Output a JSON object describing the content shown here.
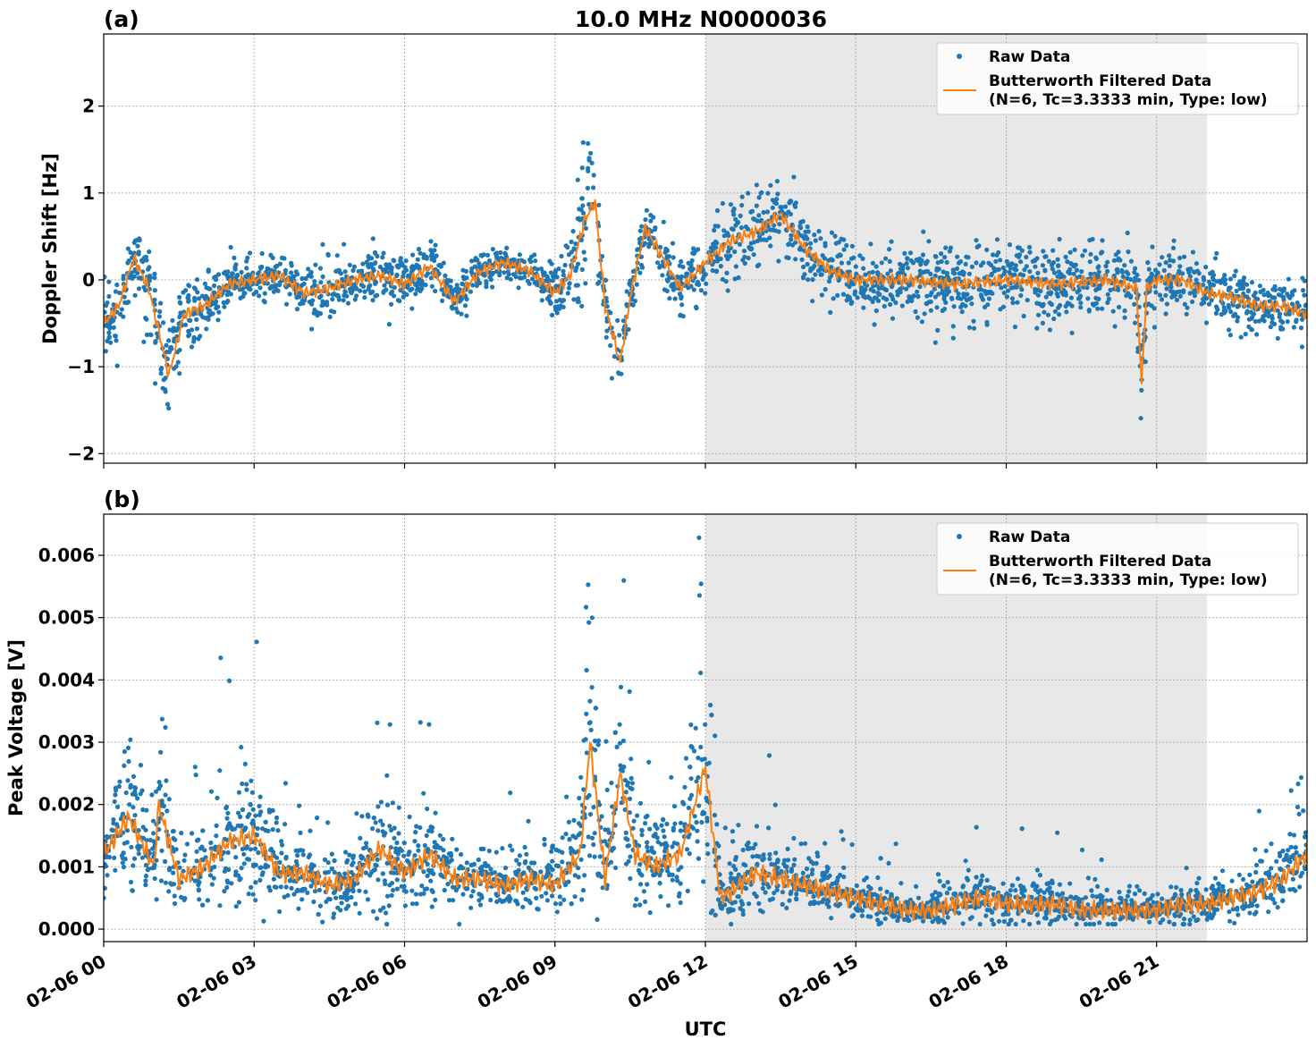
{
  "title": "10.0 MHz N0000036",
  "colors": {
    "raw": "#1f77b4",
    "filtered": "#ff7f0e",
    "shade": "#e8e8e8",
    "grid": "#b0b0b0"
  },
  "chart_data": [
    {
      "type": "scatter+line",
      "panel_label": "(a)",
      "ylabel": "Doppler Shift [Hz]",
      "ylim": [
        -2.11,
        2.83
      ],
      "yticks": [
        2,
        1,
        0,
        -1,
        -2
      ],
      "ytick_labels": [
        "2",
        "1",
        "0",
        "−1",
        "−2"
      ],
      "xlim_hours": [
        0,
        24
      ],
      "grid": true,
      "shaded_region_hours": [
        12,
        22
      ],
      "legend": {
        "placement": "top-right",
        "entries": [
          "Raw Data",
          "Butterworth Filtered Data",
          "(N=6, Tc=3.3333 min, Type: low)"
        ]
      },
      "series": [
        {
          "name": "Butterworth Filtered Data",
          "x_hours": [
            0,
            0.3,
            0.6,
            0.9,
            1.3,
            1.6,
            2,
            2.5,
            3,
            3.5,
            4,
            4.5,
            5,
            5.5,
            6,
            6.5,
            7,
            7.5,
            8,
            8.5,
            9,
            9.3,
            9.6,
            9.8,
            10,
            10.3,
            10.5,
            10.8,
            11,
            11.5,
            12,
            12.5,
            13,
            13.5,
            14,
            14.5,
            15,
            16,
            17,
            18,
            19,
            20,
            20.6,
            20.7,
            20.8,
            21,
            21.5,
            22,
            22.5,
            23,
            23.5,
            24
          ],
          "y": [
            -0.5,
            -0.3,
            0.25,
            -0.1,
            -1.1,
            -0.4,
            -0.3,
            -0.05,
            0,
            0.05,
            -0.15,
            -0.1,
            0,
            0.05,
            -0.05,
            0.15,
            -0.25,
            0.1,
            0.2,
            0.1,
            -0.15,
            0.05,
            0.7,
            0.9,
            -0.3,
            -0.95,
            -0.2,
            0.6,
            0.4,
            -0.1,
            0.2,
            0.45,
            0.55,
            0.75,
            0.35,
            0.1,
            0,
            0,
            -0.05,
            0,
            -0.05,
            0,
            -0.1,
            -1.2,
            -0.1,
            0,
            0,
            -0.15,
            -0.2,
            -0.3,
            -0.3,
            -0.4
          ]
        },
        {
          "name": "Raw Data",
          "spread": [
            0.35,
            0.35,
            0.3,
            0.45,
            0.6,
            0.45,
            0.3,
            0.25,
            0.25,
            0.25,
            0.3,
            0.3,
            0.3,
            0.3,
            0.25,
            0.25,
            0.3,
            0.2,
            0.15,
            0.2,
            0.25,
            0.35,
            0.9,
            0.9,
            0.35,
            0.3,
            0.3,
            0.25,
            0.3,
            0.3,
            0.3,
            0.4,
            0.4,
            0.4,
            0.35,
            0.3,
            0.3,
            0.35,
            0.4,
            0.4,
            0.4,
            0.4,
            0.4,
            0.5,
            0.4,
            0.35,
            0.3,
            0.3,
            0.3,
            0.3,
            0.3,
            0.35
          ]
        }
      ]
    },
    {
      "type": "scatter+line",
      "panel_label": "(b)",
      "ylabel": "Peak Voltage [V]",
      "xlabel": "UTC",
      "ylim": [
        -0.0002,
        0.00666
      ],
      "yticks": [
        0,
        0.001,
        0.002,
        0.003,
        0.004,
        0.005,
        0.006
      ],
      "ytick_labels": [
        "0.000",
        "0.001",
        "0.002",
        "0.003",
        "0.004",
        "0.005",
        "0.006"
      ],
      "xticks_hours": [
        0,
        3,
        6,
        9,
        12,
        15,
        18,
        21
      ],
      "xtick_labels": [
        "02-06 00",
        "02-06 03",
        "02-06 06",
        "02-06 09",
        "02-06 12",
        "02-06 15",
        "02-06 18",
        "02-06 21"
      ],
      "xlim_hours": [
        0,
        24
      ],
      "grid": true,
      "shaded_region_hours": [
        12,
        22
      ],
      "legend": {
        "placement": "top-right",
        "entries": [
          "Raw Data",
          "Butterworth Filtered Data",
          "(N=6, Tc=3.3333 min, Type: low)"
        ]
      },
      "series": [
        {
          "name": "Butterworth Filtered Data",
          "x_hours": [
            0,
            0.5,
            1,
            1.1,
            1.5,
            2,
            2.5,
            3,
            3.5,
            4,
            4.5,
            5,
            5.5,
            6,
            6.5,
            7,
            7.5,
            8,
            8.5,
            9,
            9.5,
            9.7,
            10,
            10.3,
            10.6,
            11,
            11.5,
            12,
            12.3,
            12.5,
            13,
            13.5,
            14,
            14.5,
            15,
            15.5,
            16,
            16.5,
            17,
            17.5,
            18,
            18.5,
            19,
            19.5,
            20,
            20.5,
            21,
            21.5,
            22,
            22.5,
            23,
            23.5,
            24
          ],
          "y": [
            0.0012,
            0.0018,
            0.001,
            0.002,
            0.0008,
            0.001,
            0.0014,
            0.0015,
            0.0009,
            0.0009,
            0.0007,
            0.0008,
            0.0013,
            0.0009,
            0.0012,
            0.0008,
            0.0008,
            0.0007,
            0.0008,
            0.0007,
            0.0012,
            0.003,
            0.0008,
            0.0025,
            0.0012,
            0.001,
            0.0012,
            0.0026,
            0.0005,
            0.0006,
            0.0009,
            0.0008,
            0.0007,
            0.0006,
            0.0005,
            0.0004,
            0.0003,
            0.0003,
            0.0004,
            0.0005,
            0.0004,
            0.0004,
            0.0004,
            0.0003,
            0.0003,
            0.0003,
            0.0003,
            0.0004,
            0.0004,
            0.0005,
            0.0006,
            0.0008,
            0.0012
          ]
        },
        {
          "name": "Raw Data",
          "spread": [
            0.0008,
            0.0015,
            0.0008,
            0.0015,
            0.0008,
            0.0012,
            0.0014,
            0.0015,
            0.0008,
            0.0008,
            0.0007,
            0.0008,
            0.0015,
            0.0008,
            0.001,
            0.0006,
            0.0006,
            0.0006,
            0.0007,
            0.0007,
            0.0012,
            0.0028,
            0.001,
            0.0022,
            0.0012,
            0.001,
            0.0012,
            0.0028,
            0.0008,
            0.0008,
            0.0009,
            0.0007,
            0.0006,
            0.0005,
            0.0005,
            0.0004,
            0.0003,
            0.0003,
            0.0005,
            0.0006,
            0.0005,
            0.0005,
            0.0005,
            0.0004,
            0.0004,
            0.0003,
            0.0003,
            0.0005,
            0.0004,
            0.0005,
            0.0006,
            0.0007,
            0.0008
          ]
        }
      ]
    }
  ]
}
